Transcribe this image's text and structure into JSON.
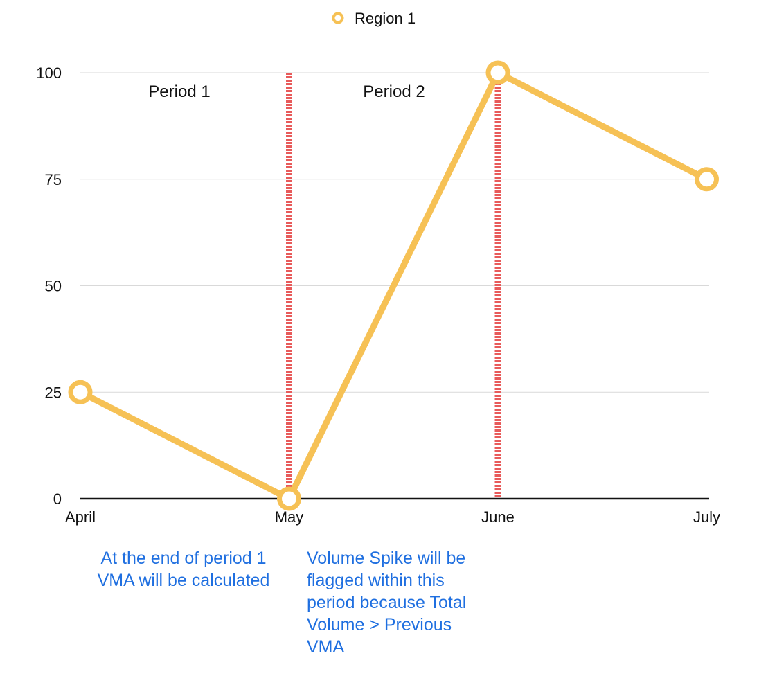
{
  "chart_data": {
    "type": "line",
    "categories": [
      "April",
      "May",
      "June",
      "July"
    ],
    "series": [
      {
        "name": "Region 1",
        "values": [
          25,
          0,
          100,
          75
        ],
        "color": "#f6c155"
      }
    ],
    "ylim": [
      0,
      100
    ],
    "yticks": [
      0,
      25,
      50,
      75,
      100
    ],
    "grid": true,
    "legend": "top-center",
    "markers": [
      {
        "at": "May",
        "style": "dashed",
        "color": "#e85a5a"
      },
      {
        "at": "June",
        "style": "dashed",
        "color": "#e85a5a"
      }
    ],
    "annotations": {
      "period_1": "Period 1",
      "period_2": "Period 2"
    }
  },
  "notes": {
    "note_1": "At the end of period 1 VMA will be calculated",
    "note_2": "Volume Spike will be flagged within this period because Total Volume > Previous VMA"
  }
}
